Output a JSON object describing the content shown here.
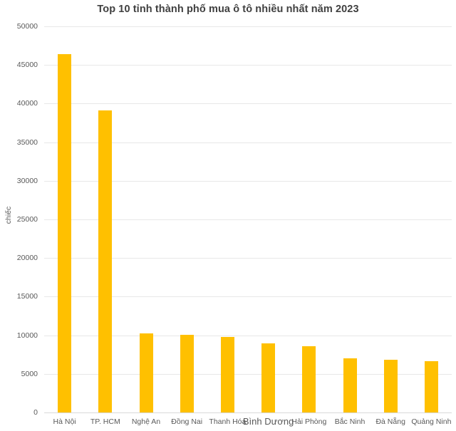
{
  "chart_data": {
    "type": "bar",
    "title": "Top 10 tỉnh thành phố mua ô tô nhiều nhất năm 2023",
    "xlabel": "",
    "ylabel": "chiếc",
    "categories": [
      "Hà Nội",
      "TP. HCM",
      "Nghệ An",
      "Đồng Nai",
      "Thanh Hóa",
      "Bình Dương",
      "Hải Phòng",
      "Bắc Ninh",
      "Đà Nẵng",
      "Quảng Ninh"
    ],
    "values": [
      46400,
      39100,
      10250,
      10050,
      9800,
      8950,
      8600,
      7000,
      6800,
      6650
    ],
    "ylim": [
      0,
      50000
    ],
    "ytick_step": 5000,
    "ytick_labels": [
      "0",
      "5000",
      "10000",
      "15000",
      "20000",
      "25000",
      "30000",
      "35000",
      "40000",
      "45000",
      "50000"
    ],
    "grid": true,
    "legend": "none",
    "layout": {
      "emphasized_category": "Bình Dương"
    }
  },
  "colors": {
    "bar": "#FFC000",
    "title_text": "#404040",
    "axis_text": "#595959",
    "gridline": "#e8e8e8",
    "zero_line": "#d9d9d9",
    "background": "#ffffff"
  }
}
